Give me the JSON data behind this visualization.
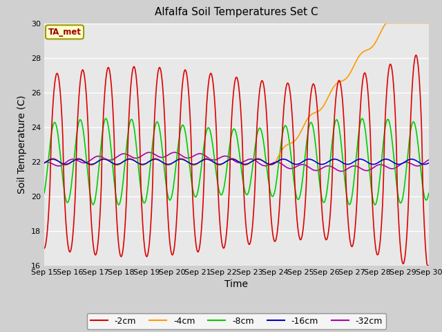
{
  "title": "Alfalfa Soil Temperatures Set C",
  "xlabel": "Time",
  "ylabel": "Soil Temperature (C)",
  "ylim": [
    16,
    30
  ],
  "yticks": [
    16,
    18,
    20,
    22,
    24,
    26,
    28,
    30
  ],
  "fig_bg": "#d0d0d0",
  "plot_bg": "#e8e8e8",
  "annotation_text": "TA_met",
  "annotation_bg": "#ffffcc",
  "annotation_border": "#999900",
  "annotation_text_color": "#990000",
  "series_colors": {
    "-2cm": "#dd0000",
    "-4cm": "#ff9900",
    "-8cm": "#00cc00",
    "-16cm": "#0000cc",
    "-32cm": "#aa00aa"
  },
  "x_labels": [
    "Sep 15",
    "Sep 16",
    "Sep 17",
    "Sep 18",
    "Sep 19",
    "Sep 20",
    "Sep 21",
    "Sep 22",
    "Sep 23",
    "Sep 24",
    "Sep 25",
    "Sep 26",
    "Sep 27",
    "Sep 28",
    "Sep 29",
    "Sep 30"
  ],
  "figsize": [
    6.4,
    4.8
  ],
  "dpi": 100
}
